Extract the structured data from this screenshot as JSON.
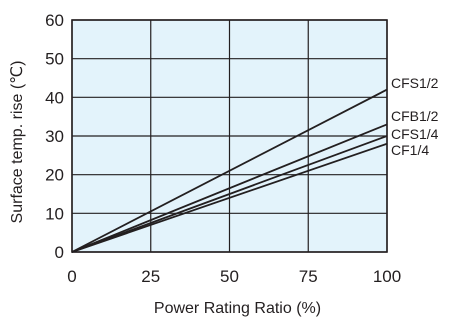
{
  "chart_data": {
    "type": "line",
    "title": "",
    "xlabel": "Power Rating Ratio (%)",
    "ylabel": "Surface temp. rise (℃)",
    "xlim": [
      0,
      100
    ],
    "ylim": [
      0,
      60
    ],
    "x_ticks": [
      "0",
      "25",
      "50",
      "75",
      "100"
    ],
    "y_ticks": [
      "0",
      "10",
      "20",
      "30",
      "40",
      "50",
      "60"
    ],
    "grid": true,
    "legend": "labels at line ends, right",
    "colors": {
      "plot_background": "#e3f3fb",
      "line": "#231f20",
      "grid": "#231f20"
    },
    "series": [
      {
        "name": "CFS1/2",
        "x": [
          0,
          100
        ],
        "y": [
          0,
          42
        ]
      },
      {
        "name": "CFB1/2",
        "x": [
          0,
          100
        ],
        "y": [
          0,
          33
        ]
      },
      {
        "name": "CFS1/4",
        "x": [
          0,
          100
        ],
        "y": [
          0,
          30
        ]
      },
      {
        "name": "CF1/4",
        "x": [
          0,
          100
        ],
        "y": [
          0,
          28
        ]
      }
    ]
  }
}
